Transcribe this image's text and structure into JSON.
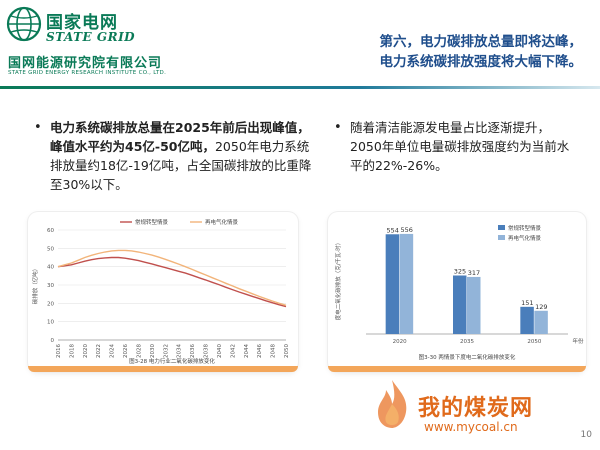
{
  "header": {
    "brand_cn": "国家电网",
    "brand_en": "STATE GRID",
    "institute_cn": "国网能源研究院有限公司",
    "institute_en": "STATE GRID ENERGY RESEARCH INSTITUTE CO., LTD.",
    "title_line1": "第六，电力碳排放总量即将达峰，",
    "title_line2": "电力系统碳排放强度将大幅下降。",
    "colors": {
      "brand_green": "#0a7a57",
      "title_blue": "#1f4e8c"
    }
  },
  "bullets": {
    "left": {
      "bold": "电力系统碳排放总量在2025年前后出现峰值，峰值水平约为45亿-50亿吨，",
      "normal": "2050年电力系统排放量约18亿-19亿吨，占全国碳排放的比重降至30%以下。"
    },
    "right": {
      "normal": "随着清洁能源发电量占比逐渐提升，2050年单位电量碳排放强度约为当前水平的22%-26%。"
    },
    "marker": "•"
  },
  "chart_data": [
    {
      "type": "line",
      "title": "图3-28  电力行业二氧化碳排放变化",
      "ylabel": "碳排放（亿吨）",
      "ylim": [
        0,
        60
      ],
      "yticks": [
        0,
        10,
        20,
        30,
        40,
        50,
        60
      ],
      "x": [
        2016,
        2017,
        2018,
        2019,
        2020,
        2021,
        2022,
        2023,
        2024,
        2025,
        2026,
        2027,
        2028,
        2029,
        2030,
        2031,
        2032,
        2033,
        2034,
        2035,
        2036,
        2037,
        2038,
        2039,
        2040,
        2041,
        2042,
        2043,
        2044,
        2045,
        2046,
        2047,
        2048,
        2049,
        2050
      ],
      "xtick_labels": [
        "2016",
        "2018",
        "2020",
        "2022",
        "2024",
        "2026",
        "2028",
        "2030",
        "2032",
        "2034",
        "2036",
        "2038",
        "2040",
        "2042",
        "2044",
        "2046",
        "2048",
        "2050"
      ],
      "legend_position": "top",
      "series": [
        {
          "name": "常规转型情景",
          "color": "#c0504d",
          "values": [
            40,
            40.5,
            41,
            42,
            43,
            43.8,
            44.4,
            44.8,
            45,
            45,
            44.6,
            44,
            43.3,
            42.4,
            41.5,
            40.5,
            39.5,
            38.5,
            37.5,
            36.5,
            35.3,
            34,
            32.8,
            31.5,
            30.2,
            28.8,
            27.5,
            26.2,
            25,
            23.8,
            22.6,
            21.4,
            20.3,
            19.2,
            18.2
          ]
        },
        {
          "name": "再电气化情景",
          "color": "#f2b47a",
          "values": [
            40,
            41,
            42,
            43.5,
            45,
            46.2,
            47.2,
            48,
            48.6,
            48.9,
            48.9,
            48.6,
            48,
            47.2,
            46.3,
            45.2,
            44,
            42.7,
            41.4,
            40,
            38.5,
            37,
            35.5,
            34,
            32.5,
            31,
            29.5,
            28,
            26.6,
            25.2,
            23.8,
            22.5,
            21.2,
            20,
            18.9
          ]
        }
      ]
    },
    {
      "type": "bar",
      "title": "图3-30  两情景下度电二氧化碳排放变化",
      "ylabel": "度电二氧化碳排放（克/千瓦·时）",
      "xlabel": "年份",
      "categories": [
        "2020",
        "2035",
        "2050"
      ],
      "ylim": [
        0,
        600
      ],
      "legend_position": "top-right",
      "series": [
        {
          "name": "常规转型情景",
          "color": "#4a7ebb",
          "values": [
            554,
            325,
            151
          ]
        },
        {
          "name": "再电气化情景",
          "color": "#92b4d9",
          "values": [
            556,
            317,
            129
          ]
        }
      ]
    }
  ],
  "watermark": {
    "cn": "我的煤炭网",
    "url": "www.mycoal.cn"
  },
  "page_number": "10"
}
